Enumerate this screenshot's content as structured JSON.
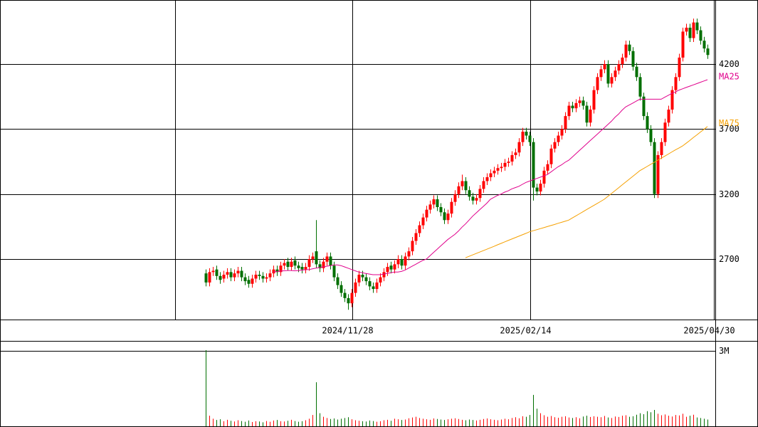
{
  "chart_data": {
    "type": "candlestick",
    "up_color": "#ff0000",
    "down_color": "#006f00",
    "xlim": [
      -57.8,
      143.2
    ],
    "xticks": [
      {
        "value": -8.6,
        "label": null
      },
      {
        "value": 41.2,
        "label": "2024/11/28"
      },
      {
        "value": 91.2,
        "label": "2025/02/14"
      },
      {
        "value": 142.8,
        "label": "2025/04/30"
      }
    ],
    "ylim": [
      2235,
      4693
    ],
    "yticks": [
      2700,
      3200,
      3700,
      4200
    ],
    "grid": true,
    "open": [
      2590,
      2520,
      2600,
      2620,
      2570,
      2550,
      2580,
      2600,
      2560,
      2590,
      2610,
      2560,
      2540,
      2510,
      2550,
      2580,
      2570,
      2550,
      2560,
      2590,
      2620,
      2600,
      2650,
      2680,
      2640,
      2690,
      2650,
      2640,
      2620,
      2640,
      2700,
      2760,
      2660,
      2630,
      2680,
      2720,
      2650,
      2560,
      2500,
      2440,
      2400,
      2360,
      2440,
      2520,
      2580,
      2560,
      2530,
      2490,
      2470,
      2520,
      2560,
      2600,
      2650,
      2620,
      2660,
      2700,
      2650,
      2720,
      2760,
      2840,
      2900,
      2960,
      3020,
      3080,
      3120,
      3160,
      3100,
      3060,
      3000,
      3050,
      3140,
      3200,
      3260,
      3300,
      3230,
      3180,
      3150,
      3170,
      3240,
      3300,
      3330,
      3360,
      3380,
      3400,
      3410,
      3440,
      3450,
      3500,
      3520,
      3600,
      3680,
      3650,
      3600,
      3250,
      3220,
      3280,
      3380,
      3430,
      3550,
      3600,
      3650,
      3700,
      3800,
      3880,
      3860,
      3900,
      3920,
      3880,
      3750,
      3850,
      4000,
      4100,
      4160,
      4200,
      4050,
      4100,
      4150,
      4200,
      4250,
      4350,
      4300,
      4180,
      4100,
      3950,
      3800,
      3700,
      3600,
      3200,
      3500,
      3600,
      3750,
      3850,
      4000,
      4100,
      4250,
      4450,
      4480,
      4400,
      4520,
      4460,
      4380,
      4320
    ],
    "high": [
      2620,
      2630,
      2640,
      2650,
      2600,
      2610,
      2630,
      2630,
      2620,
      2640,
      2640,
      2590,
      2570,
      2580,
      2610,
      2610,
      2600,
      2590,
      2620,
      2650,
      2650,
      2680,
      2700,
      2710,
      2710,
      2720,
      2680,
      2670,
      2670,
      2730,
      2750,
      3000,
      2690,
      2710,
      2750,
      2750,
      2680,
      2590,
      2530,
      2470,
      2430,
      2470,
      2550,
      2610,
      2610,
      2590,
      2560,
      2520,
      2550,
      2590,
      2630,
      2670,
      2680,
      2690,
      2730,
      2730,
      2750,
      2790,
      2870,
      2930,
      2990,
      3050,
      3110,
      3150,
      3190,
      3190,
      3130,
      3090,
      3080,
      3170,
      3230,
      3290,
      3350,
      3330,
      3260,
      3210,
      3200,
      3270,
      3330,
      3360,
      3390,
      3410,
      3430,
      3440,
      3470,
      3480,
      3530,
      3550,
      3630,
      3710,
      3710,
      3680,
      3630,
      3280,
      3310,
      3410,
      3460,
      3580,
      3630,
      3680,
      3730,
      3830,
      3910,
      3910,
      3930,
      3950,
      3950,
      3910,
      3880,
      4030,
      4130,
      4190,
      4230,
      4230,
      4130,
      4180,
      4230,
      4280,
      4380,
      4380,
      4330,
      4210,
      4130,
      3980,
      3830,
      3730,
      3630,
      3530,
      3630,
      3780,
      3880,
      4030,
      4130,
      4280,
      4480,
      4510,
      4510,
      4550,
      4550,
      4490,
      4410,
      4350
    ],
    "low": [
      2490,
      2490,
      2570,
      2540,
      2510,
      2520,
      2550,
      2530,
      2530,
      2560,
      2530,
      2500,
      2480,
      2480,
      2520,
      2540,
      2520,
      2520,
      2530,
      2560,
      2570,
      2570,
      2620,
      2610,
      2610,
      2620,
      2600,
      2590,
      2590,
      2610,
      2670,
      2630,
      2600,
      2600,
      2650,
      2620,
      2530,
      2470,
      2410,
      2370,
      2310,
      2330,
      2410,
      2490,
      2530,
      2500,
      2460,
      2440,
      2440,
      2490,
      2530,
      2570,
      2590,
      2590,
      2630,
      2620,
      2620,
      2690,
      2730,
      2810,
      2870,
      2930,
      2990,
      3050,
      3090,
      3070,
      3030,
      2970,
      2970,
      3020,
      3110,
      3170,
      3230,
      3200,
      3150,
      3120,
      3120,
      3140,
      3210,
      3270,
      3300,
      3330,
      3350,
      3370,
      3380,
      3410,
      3420,
      3470,
      3490,
      3570,
      3620,
      3570,
      3150,
      3190,
      3190,
      3250,
      3350,
      3400,
      3520,
      3570,
      3620,
      3670,
      3770,
      3830,
      3830,
      3870,
      3850,
      3720,
      3720,
      3820,
      3970,
      4070,
      4130,
      4020,
      4020,
      4070,
      4120,
      4170,
      4220,
      4270,
      4150,
      4070,
      3920,
      3770,
      3670,
      3570,
      3170,
      3170,
      3470,
      3570,
      3720,
      3820,
      3970,
      4070,
      4220,
      4420,
      4370,
      4370,
      4430,
      4350,
      4290,
      4240
    ],
    "close": [
      2520,
      2600,
      2610,
      2570,
      2540,
      2580,
      2600,
      2560,
      2590,
      2610,
      2560,
      2530,
      2510,
      2550,
      2580,
      2570,
      2550,
      2560,
      2590,
      2620,
      2600,
      2650,
      2670,
      2640,
      2680,
      2650,
      2630,
      2620,
      2640,
      2700,
      2720,
      2660,
      2630,
      2680,
      2720,
      2650,
      2560,
      2500,
      2440,
      2400,
      2360,
      2440,
      2520,
      2580,
      2560,
      2530,
      2490,
      2470,
      2520,
      2560,
      2600,
      2640,
      2620,
      2660,
      2700,
      2650,
      2720,
      2760,
      2840,
      2900,
      2960,
      3020,
      3080,
      3120,
      3160,
      3100,
      3060,
      3000,
      3050,
      3140,
      3200,
      3260,
      3300,
      3230,
      3180,
      3150,
      3170,
      3240,
      3300,
      3330,
      3360,
      3380,
      3400,
      3410,
      3440,
      3450,
      3500,
      3520,
      3600,
      3680,
      3650,
      3600,
      3250,
      3220,
      3280,
      3380,
      3430,
      3550,
      3600,
      3650,
      3700,
      3800,
      3880,
      3860,
      3900,
      3920,
      3880,
      3750,
      3850,
      4000,
      4100,
      4160,
      4200,
      4050,
      4100,
      4150,
      4200,
      4250,
      4350,
      4300,
      4180,
      4100,
      3950,
      3800,
      3700,
      3600,
      3200,
      3500,
      3600,
      3750,
      3850,
      4000,
      4100,
      4250,
      4450,
      4480,
      4400,
      4520,
      4460,
      4380,
      4320,
      4270
    ],
    "series": [
      {
        "name": "MA25",
        "color": "#e0008c",
        "values": [
          null,
          null,
          null,
          null,
          null,
          null,
          null,
          null,
          null,
          null,
          null,
          null,
          null,
          null,
          null,
          null,
          null,
          null,
          null,
          2600,
          2605,
          2608,
          2610,
          2612,
          2612,
          2610,
          2612,
          2615,
          2618,
          2620,
          2625,
          2630,
          2635,
          2640,
          2645,
          2650,
          2655,
          2655,
          2650,
          2640,
          2630,
          2620,
          2610,
          2600,
          2595,
          2590,
          2585,
          2580,
          2580,
          2580,
          2585,
          2590,
          2595,
          2600,
          2600,
          2605,
          2615,
          2630,
          2645,
          2660,
          2675,
          2690,
          2700,
          2725,
          2750,
          2775,
          2800,
          2825,
          2850,
          2870,
          2890,
          2915,
          2945,
          2970,
          3000,
          3030,
          3055,
          3080,
          3105,
          3130,
          3160,
          3175,
          3190,
          3200,
          3215,
          3225,
          3240,
          3250,
          3260,
          3275,
          3290,
          3300,
          3310,
          3320,
          3330,
          3340,
          3350,
          3370,
          3390,
          3410,
          3425,
          3445,
          3460,
          3485,
          3510,
          3535,
          3560,
          3585,
          3610,
          3635,
          3660,
          3685,
          3710,
          3735,
          3760,
          3790,
          3815,
          3845,
          3870,
          3885,
          3900,
          3915,
          3930,
          3930,
          3930,
          3930,
          3930,
          3930,
          3930,
          3945,
          3960,
          3975,
          3985,
          4000,
          4010,
          4020,
          4030,
          4040,
          4050,
          4060,
          4070,
          4080
        ]
      },
      {
        "name": "MA75",
        "color": "#f5a000",
        "values": [
          null,
          null,
          null,
          null,
          null,
          null,
          null,
          null,
          null,
          null,
          null,
          null,
          null,
          null,
          null,
          null,
          null,
          null,
          null,
          null,
          null,
          null,
          null,
          null,
          null,
          null,
          null,
          null,
          null,
          null,
          null,
          null,
          null,
          null,
          null,
          null,
          null,
          null,
          null,
          null,
          null,
          null,
          null,
          null,
          null,
          null,
          null,
          null,
          null,
          null,
          null,
          null,
          null,
          null,
          null,
          null,
          null,
          null,
          null,
          null,
          null,
          null,
          null,
          null,
          null,
          null,
          null,
          null,
          null,
          null,
          null,
          null,
          null,
          2710,
          2721,
          2732,
          2743,
          2754,
          2765,
          2776,
          2787,
          2798,
          2810,
          2821,
          2832,
          2843,
          2854,
          2865,
          2876,
          2887,
          2898,
          2910,
          2918,
          2926,
          2934,
          2942,
          2950,
          2958,
          2966,
          2975,
          2983,
          2991,
          3000,
          3016,
          3032,
          3048,
          3064,
          3080,
          3096,
          3112,
          3128,
          3144,
          3160,
          3182,
          3204,
          3226,
          3248,
          3270,
          3292,
          3314,
          3336,
          3358,
          3380,
          3396,
          3412,
          3428,
          3444,
          3460,
          3476,
          3492,
          3508,
          3524,
          3540,
          3555,
          3570,
          3591,
          3612,
          3634,
          3655,
          3677,
          3698,
          3720
        ]
      }
    ],
    "volume": {
      "ylim": [
        0,
        3340000
      ],
      "yticks": [
        {
          "value": 3000000,
          "label": "3M"
        }
      ],
      "values": [
        3030000,
        420000,
        300000,
        250000,
        280000,
        200000,
        260000,
        220000,
        190000,
        240000,
        210000,
        180000,
        230000,
        170000,
        200000,
        190000,
        160000,
        210000,
        180000,
        230000,
        250000,
        200000,
        190000,
        220000,
        260000,
        210000,
        180000,
        200000,
        240000,
        300000,
        450000,
        1750000,
        520000,
        380000,
        330000,
        290000,
        310000,
        270000,
        300000,
        330000,
        360000,
        280000,
        240000,
        220000,
        200000,
        190000,
        230000,
        210000,
        180000,
        200000,
        240000,
        260000,
        220000,
        300000,
        280000,
        250000,
        270000,
        320000,
        350000,
        380000,
        330000,
        300000,
        280000,
        260000,
        310000,
        290000,
        270000,
        250000,
        280000,
        300000,
        320000,
        290000,
        260000,
        240000,
        270000,
        250000,
        230000,
        260000,
        290000,
        310000,
        280000,
        260000,
        240000,
        270000,
        300000,
        280000,
        330000,
        360000,
        320000,
        400000,
        380000,
        450000,
        1250000,
        700000,
        520000,
        440000,
        380000,
        410000,
        360000,
        340000,
        380000,
        400000,
        350000,
        330000,
        360000,
        320000,
        390000,
        420000,
        370000,
        400000,
        380000,
        360000,
        410000,
        350000,
        330000,
        390000,
        370000,
        420000,
        440000,
        380000,
        400000,
        460000,
        520000,
        480000,
        600000,
        560000,
        650000,
        500000,
        440000,
        470000,
        420000,
        390000,
        450000,
        430000,
        500000,
        380000,
        420000,
        460000,
        350000,
        330000,
        300000,
        270000
      ]
    }
  }
}
